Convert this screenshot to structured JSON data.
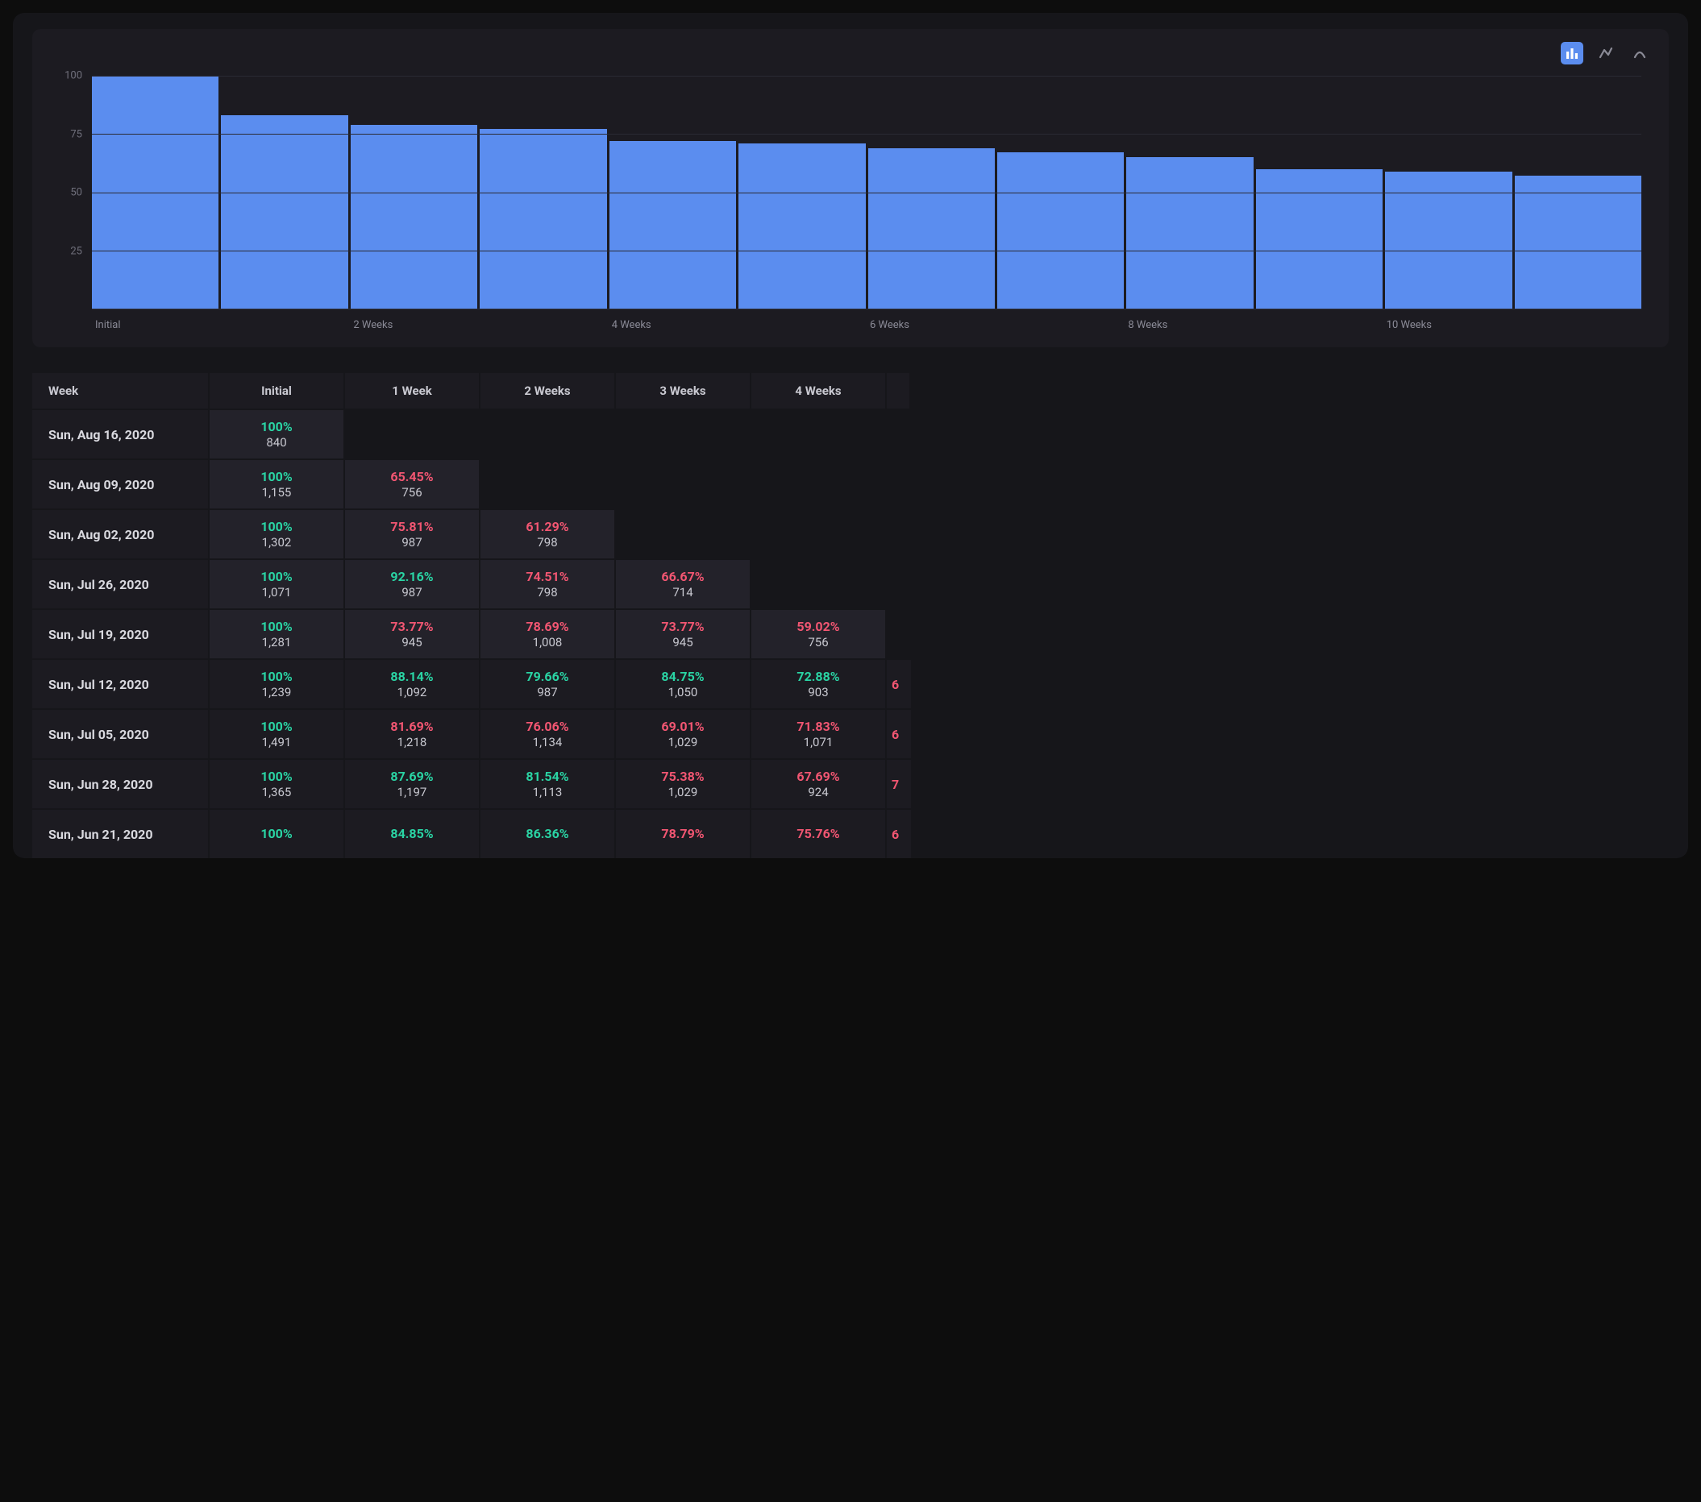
{
  "colors": {
    "page_bg": "#0d0d0d",
    "panel_bg": "#16161a",
    "card_bg": "#1c1b21",
    "cell_highlight_bg": "#23222a",
    "bar_color": "#5b8def",
    "grid_color": "#2a2a33",
    "text_primary": "#e8e8ed",
    "text_muted": "#8a8a96",
    "green": "#2ad4a4",
    "red": "#f25672"
  },
  "retention_chart": {
    "type": "bar",
    "ylim": [
      0,
      100
    ],
    "yticks": [
      25,
      50,
      75,
      100
    ],
    "bar_color": "#5b8def",
    "grid_color": "#2a2a33",
    "background": "#1c1b21",
    "bars": [
      {
        "label": "Initial",
        "value": 100
      },
      {
        "label": "",
        "value": 83
      },
      {
        "label": "2 Weeks",
        "value": 79
      },
      {
        "label": "",
        "value": 77
      },
      {
        "label": "4 Weeks",
        "value": 72
      },
      {
        "label": "",
        "value": 71
      },
      {
        "label": "6 Weeks",
        "value": 69
      },
      {
        "label": "",
        "value": 67
      },
      {
        "label": "8 Weeks",
        "value": 65
      },
      {
        "label": "",
        "value": 60
      },
      {
        "label": "10 Weeks",
        "value": 59
      },
      {
        "label": "",
        "value": 57
      }
    ]
  },
  "table": {
    "columns": [
      "Week",
      "Initial",
      "1 Week",
      "2 Weeks",
      "3 Weeks",
      "4 Weeks"
    ],
    "partial_next_col_header_glimpse": "!",
    "rows": [
      {
        "week": "Sun, Aug 16, 2020",
        "cells": [
          {
            "pct": "100%",
            "count": "840",
            "color": "green",
            "shade": "lighter"
          }
        ],
        "partial": null
      },
      {
        "week": "Sun, Aug 09, 2020",
        "cells": [
          {
            "pct": "100%",
            "count": "1,155",
            "color": "green",
            "shade": "lighter"
          },
          {
            "pct": "65.45%",
            "count": "756",
            "color": "red",
            "shade": "lighter"
          }
        ],
        "partial": null
      },
      {
        "week": "Sun, Aug 02, 2020",
        "cells": [
          {
            "pct": "100%",
            "count": "1,302",
            "color": "green",
            "shade": "lighter"
          },
          {
            "pct": "75.81%",
            "count": "987",
            "color": "red",
            "shade": "lighter"
          },
          {
            "pct": "61.29%",
            "count": "798",
            "color": "red",
            "shade": "lighter"
          }
        ],
        "partial": null
      },
      {
        "week": "Sun, Jul 26, 2020",
        "cells": [
          {
            "pct": "100%",
            "count": "1,071",
            "color": "green",
            "shade": "lighter"
          },
          {
            "pct": "92.16%",
            "count": "987",
            "color": "green",
            "shade": "lighter"
          },
          {
            "pct": "74.51%",
            "count": "798",
            "color": "red",
            "shade": "lighter"
          },
          {
            "pct": "66.67%",
            "count": "714",
            "color": "red",
            "shade": "lighter"
          }
        ],
        "partial": null
      },
      {
        "week": "Sun, Jul 19, 2020",
        "cells": [
          {
            "pct": "100%",
            "count": "1,281",
            "color": "green",
            "shade": "lighter"
          },
          {
            "pct": "73.77%",
            "count": "945",
            "color": "red",
            "shade": "lighter"
          },
          {
            "pct": "78.69%",
            "count": "1,008",
            "color": "red",
            "shade": "lighter"
          },
          {
            "pct": "73.77%",
            "count": "945",
            "color": "red",
            "shade": "lighter"
          },
          {
            "pct": "59.02%",
            "count": "756",
            "color": "red",
            "shade": "lighter"
          }
        ],
        "partial": null
      },
      {
        "week": "Sun, Jul 12, 2020",
        "cells": [
          {
            "pct": "100%",
            "count": "1,239",
            "color": "green",
            "shade": null
          },
          {
            "pct": "88.14%",
            "count": "1,092",
            "color": "green",
            "shade": null
          },
          {
            "pct": "79.66%",
            "count": "987",
            "color": "green",
            "shade": null
          },
          {
            "pct": "84.75%",
            "count": "1,050",
            "color": "green",
            "shade": null
          },
          {
            "pct": "72.88%",
            "count": "903",
            "color": "green",
            "shade": null
          }
        ],
        "partial": {
          "text": "6",
          "color": "red"
        }
      },
      {
        "week": "Sun, Jul 05, 2020",
        "cells": [
          {
            "pct": "100%",
            "count": "1,491",
            "color": "green",
            "shade": null
          },
          {
            "pct": "81.69%",
            "count": "1,218",
            "color": "red",
            "shade": null
          },
          {
            "pct": "76.06%",
            "count": "1,134",
            "color": "red",
            "shade": null
          },
          {
            "pct": "69.01%",
            "count": "1,029",
            "color": "red",
            "shade": null
          },
          {
            "pct": "71.83%",
            "count": "1,071",
            "color": "red",
            "shade": null
          }
        ],
        "partial": {
          "text": "6",
          "color": "red"
        }
      },
      {
        "week": "Sun, Jun 28, 2020",
        "cells": [
          {
            "pct": "100%",
            "count": "1,365",
            "color": "green",
            "shade": null
          },
          {
            "pct": "87.69%",
            "count": "1,197",
            "color": "green",
            "shade": null
          },
          {
            "pct": "81.54%",
            "count": "1,113",
            "color": "green",
            "shade": null
          },
          {
            "pct": "75.38%",
            "count": "1,029",
            "color": "red",
            "shade": null
          },
          {
            "pct": "67.69%",
            "count": "924",
            "color": "red",
            "shade": null
          }
        ],
        "partial": {
          "text": "7",
          "color": "red"
        }
      },
      {
        "week": "Sun, Jun 21, 2020",
        "cells": [
          {
            "pct": "100%",
            "count": "",
            "color": "green",
            "shade": null
          },
          {
            "pct": "84.85%",
            "count": "",
            "color": "green",
            "shade": null
          },
          {
            "pct": "86.36%",
            "count": "",
            "color": "green",
            "shade": null
          },
          {
            "pct": "78.79%",
            "count": "",
            "color": "red",
            "shade": null
          },
          {
            "pct": "75.76%",
            "count": "",
            "color": "red",
            "shade": null
          }
        ],
        "partial": {
          "text": "6",
          "color": "red"
        }
      }
    ]
  }
}
